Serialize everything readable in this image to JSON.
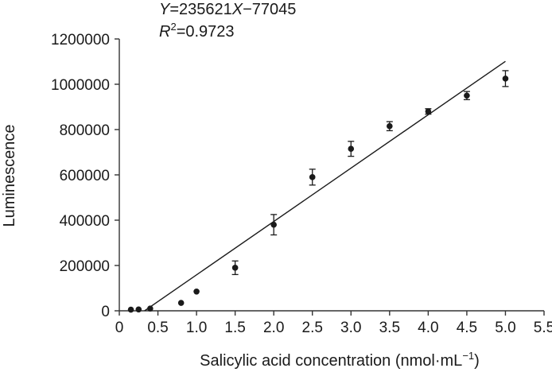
{
  "chart_data": {
    "type": "scatter",
    "title": "",
    "xlabel": "Salicylic acid concentration (nmol·mL",
    "xlabel_sup": "−1",
    "xlabel_close": ")",
    "ylabel": "Luminescence",
    "xlim": [
      0,
      5.5
    ],
    "ylim": [
      0,
      1200000
    ],
    "xticks": [
      0,
      0.5,
      1.0,
      1.5,
      2.0,
      2.5,
      3.0,
      3.5,
      4.0,
      4.5,
      5.0,
      5.5
    ],
    "xtick_labels": [
      "0",
      "0.5",
      "1.0",
      "1.5",
      "2.0",
      "2.5",
      "3.0",
      "3.5",
      "4.0",
      "4.5",
      "5.0",
      "5.5"
    ],
    "yticks": [
      0,
      200000,
      400000,
      600000,
      800000,
      1000000,
      1200000
    ],
    "ytick_labels": [
      "0",
      "200000",
      "400000",
      "600000",
      "800000",
      "1000000",
      "1200000"
    ],
    "grid": false,
    "series": [
      {
        "points": [
          {
            "x": 0.15,
            "y": 5000,
            "err": 0
          },
          {
            "x": 0.25,
            "y": 6000,
            "err": 0
          },
          {
            "x": 0.4,
            "y": 10000,
            "err": 0
          },
          {
            "x": 0.8,
            "y": 35000,
            "err": 0
          },
          {
            "x": 1.0,
            "y": 85000,
            "err": 0
          },
          {
            "x": 1.5,
            "y": 190000,
            "err": 30000
          },
          {
            "x": 2.0,
            "y": 380000,
            "err": 45000
          },
          {
            "x": 2.5,
            "y": 590000,
            "err": 35000
          },
          {
            "x": 3.0,
            "y": 715000,
            "err": 33000
          },
          {
            "x": 3.5,
            "y": 815000,
            "err": 20000
          },
          {
            "x": 4.0,
            "y": 880000,
            "err": 12000
          },
          {
            "x": 4.5,
            "y": 950000,
            "err": 18000
          },
          {
            "x": 5.0,
            "y": 1025000,
            "err": 35000
          }
        ]
      }
    ],
    "fit": {
      "slope": 235621,
      "intercept": -77045,
      "x_start": 0.327,
      "x_end": 5.0,
      "equation_y": "Y",
      "equation_mid": "=235621",
      "equation_x": "X",
      "equation_end": "−77045",
      "r2_r": "R",
      "r2_sup": "2",
      "r2_value": "=0.9723"
    }
  }
}
